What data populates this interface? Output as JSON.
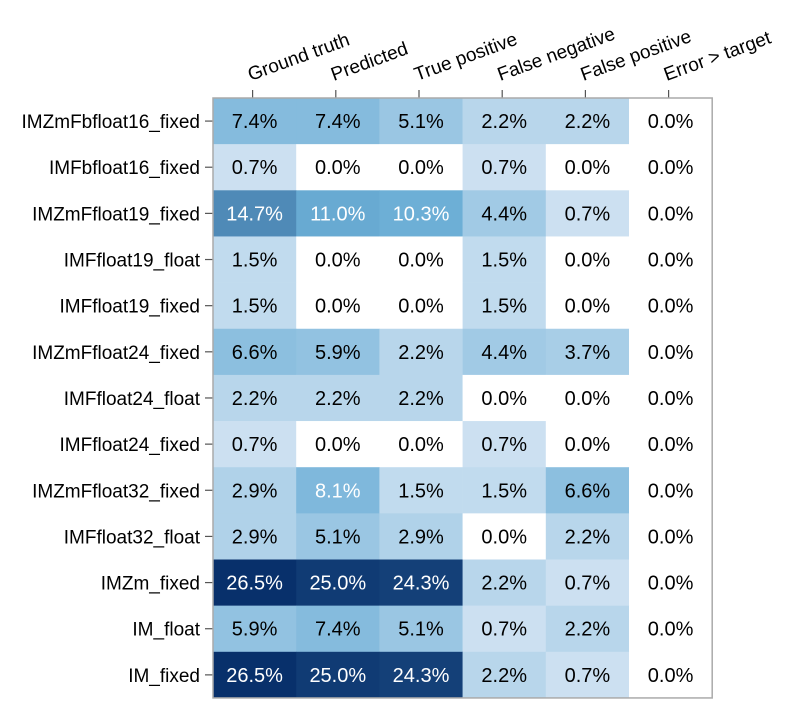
{
  "chart_data": {
    "type": "heatmap",
    "columns": [
      "Ground truth",
      "Predicted",
      "True positive",
      "False negative",
      "False positive",
      "Error > target"
    ],
    "rows": [
      "IMZmFbfloat16_fixed",
      "IMFbfloat16_fixed",
      "IMZmFfloat19_fixed",
      "IMFfloat19_float",
      "IMFfloat19_fixed",
      "IMZmFfloat24_fixed",
      "IMFfloat24_float",
      "IMFfloat24_fixed",
      "IMZmFfloat32_fixed",
      "IMFfloat32_float",
      "IMZm_fixed",
      "IM_float",
      "IM_fixed"
    ],
    "values": [
      [
        7.4,
        7.4,
        5.1,
        2.2,
        2.2,
        0.0
      ],
      [
        0.7,
        0.0,
        0.0,
        0.7,
        0.0,
        0.0
      ],
      [
        14.7,
        11.0,
        10.3,
        4.4,
        0.7,
        0.0
      ],
      [
        1.5,
        0.0,
        0.0,
        1.5,
        0.0,
        0.0
      ],
      [
        1.5,
        0.0,
        0.0,
        1.5,
        0.0,
        0.0
      ],
      [
        6.6,
        5.9,
        2.2,
        4.4,
        3.7,
        0.0
      ],
      [
        2.2,
        2.2,
        2.2,
        0.0,
        0.0,
        0.0
      ],
      [
        0.7,
        0.0,
        0.0,
        0.7,
        0.0,
        0.0
      ],
      [
        2.9,
        8.1,
        1.5,
        1.5,
        6.6,
        0.0
      ],
      [
        2.9,
        5.1,
        2.9,
        0.0,
        2.2,
        0.0
      ],
      [
        26.5,
        25.0,
        24.3,
        2.2,
        0.7,
        0.0
      ],
      [
        5.9,
        7.4,
        5.1,
        0.7,
        2.2,
        0.0
      ],
      [
        26.5,
        25.0,
        24.3,
        2.2,
        0.7,
        0.0
      ]
    ],
    "labels": [
      [
        "7.4%",
        "7.4%",
        "5.1%",
        "2.2%",
        "2.2%",
        "0.0%"
      ],
      [
        "0.7%",
        "0.0%",
        "0.0%",
        "0.7%",
        "0.0%",
        "0.0%"
      ],
      [
        "14.7%",
        "11.0%",
        "10.3%",
        "4.4%",
        "0.7%",
        "0.0%"
      ],
      [
        "1.5%",
        "0.0%",
        "0.0%",
        "1.5%",
        "0.0%",
        "0.0%"
      ],
      [
        "1.5%",
        "0.0%",
        "0.0%",
        "1.5%",
        "0.0%",
        "0.0%"
      ],
      [
        "6.6%",
        "5.9%",
        "2.2%",
        "4.4%",
        "3.7%",
        "0.0%"
      ],
      [
        "2.2%",
        "2.2%",
        "2.2%",
        "0.0%",
        "0.0%",
        "0.0%"
      ],
      [
        "0.7%",
        "0.0%",
        "0.0%",
        "0.7%",
        "0.0%",
        "0.0%"
      ],
      [
        "2.9%",
        "8.1%",
        "1.5%",
        "1.5%",
        "6.6%",
        "0.0%"
      ],
      [
        "2.9%",
        "5.1%",
        "2.9%",
        "0.0%",
        "2.2%",
        "0.0%"
      ],
      [
        "26.5%",
        "25.0%",
        "24.3%",
        "2.2%",
        "0.7%",
        "0.0%"
      ],
      [
        "5.9%",
        "7.4%",
        "5.1%",
        "0.7%",
        "2.2%",
        "0.0%"
      ],
      [
        "26.5%",
        "25.0%",
        "24.3%",
        "2.2%",
        "0.7%",
        "0.0%"
      ]
    ],
    "color_scale": "blues",
    "zero_color": "#ffffff",
    "colors": {
      "lightest": "#dbe8f5",
      "darkest": "#08306b",
      "text_dark": "#000000",
      "text_light": "#ffffff"
    },
    "column_label_rotation": "diagonal",
    "grid": false,
    "legend": "none"
  }
}
